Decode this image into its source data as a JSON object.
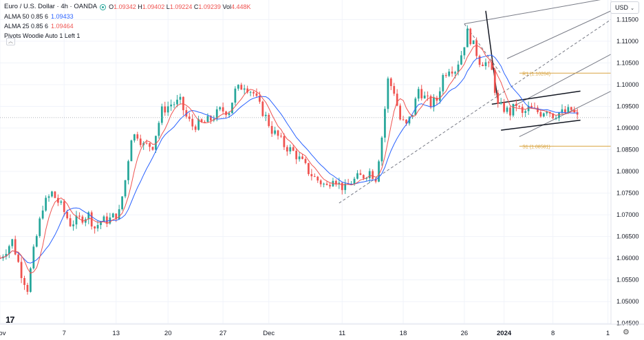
{
  "legend": {
    "symbol": "Euro / U.S. Dollar · 4h · OANDA",
    "ohlc": {
      "o_label": "O",
      "o": "1.09342",
      "h_label": "H",
      "h": "1.09402",
      "l_label": "L",
      "l": "1.09224",
      "c_label": "C",
      "c": "1.09239",
      "vol_label": "Vol",
      "vol": "4.448K"
    },
    "alma50": {
      "label": "ALMA 50 0.85 6",
      "value": "1.09433"
    },
    "alma25": {
      "label": "ALMA 25 0.85 6",
      "value": "1.09464"
    },
    "pivots": "Pivots Woodie Auto 1 Left 1",
    "collapse_icon": "chevron-up-icon"
  },
  "currency_button": "USD",
  "chart_data": {
    "type": "candlestick",
    "symbol": "EUR/USD",
    "timeframe": "4h",
    "ylim": [
      1.0448,
      1.1195
    ],
    "y_ticks": [
      "1.11500",
      "1.11000",
      "1.10500",
      "1.10000",
      "1.09500",
      "1.09000",
      "1.08500",
      "1.08000",
      "1.07500",
      "1.07000",
      "1.06500",
      "1.06000",
      "1.05500",
      "1.05000",
      "1.04500"
    ],
    "x_ticks": [
      {
        "label": "Nov",
        "pos": 0
      },
      {
        "label": "7",
        "pos": 10.5
      },
      {
        "label": "13",
        "pos": 19.0
      },
      {
        "label": "20",
        "pos": 27.5
      },
      {
        "label": "27",
        "pos": 36.5
      },
      {
        "label": "Dec",
        "pos": 44.0
      },
      {
        "label": "11",
        "pos": 56.0
      },
      {
        "label": "18",
        "pos": 66.0
      },
      {
        "label": "26",
        "pos": 76.0
      },
      {
        "label": "2024",
        "pos": 82.5
      },
      {
        "label": "8",
        "pos": 90.5
      },
      {
        "label": "1",
        "pos": 99.5
      }
    ],
    "close_path": [
      [
        0,
        1.06
      ],
      [
        2,
        1.064
      ],
      [
        3.5,
        1.0565
      ],
      [
        4.5,
        1.053
      ],
      [
        5.5,
        1.0615
      ],
      [
        7,
        1.072
      ],
      [
        8.5,
        1.075
      ],
      [
        10,
        1.072
      ],
      [
        11.5,
        1.068
      ],
      [
        13,
        1.069
      ],
      [
        14.5,
        1.07
      ],
      [
        15.5,
        1.067
      ],
      [
        16.5,
        1.0685
      ],
      [
        18,
        1.069
      ],
      [
        19.5,
        1.0705
      ],
      [
        20.5,
        1.078
      ],
      [
        21.5,
        1.088
      ],
      [
        22.5,
        1.0885
      ],
      [
        23.5,
        1.086
      ],
      [
        25,
        1.086
      ],
      [
        26.5,
        1.094
      ],
      [
        28,
        1.0955
      ],
      [
        29.5,
        1.096
      ],
      [
        30.5,
        1.0925
      ],
      [
        31.5,
        1.0905
      ],
      [
        33,
        1.091
      ],
      [
        34.5,
        1.092
      ],
      [
        36,
        1.094
      ],
      [
        37.5,
        1.094
      ],
      [
        38.5,
        1.0985
      ],
      [
        40,
        1.1
      ],
      [
        41.5,
        1.098
      ],
      [
        42.5,
        1.095
      ],
      [
        43.5,
        1.0925
      ],
      [
        44.5,
        1.0895
      ],
      [
        45.5,
        1.088
      ],
      [
        46.5,
        1.086
      ],
      [
        48,
        1.0845
      ],
      [
        49.5,
        1.082
      ],
      [
        50.5,
        1.08
      ],
      [
        51.5,
        1.0785
      ],
      [
        52.5,
        1.0775
      ],
      [
        53.5,
        1.0765
      ],
      [
        54.5,
        1.079
      ],
      [
        55.5,
        1.077
      ],
      [
        56.5,
        1.076
      ],
      [
        57.5,
        1.0775
      ],
      [
        58.5,
        1.0785
      ],
      [
        59.5,
        1.079
      ],
      [
        60.5,
        1.08
      ],
      [
        61.5,
        1.0785
      ],
      [
        62.5,
        1.088
      ],
      [
        63.5,
        1.101
      ],
      [
        64.5,
        1.0985
      ],
      [
        65.5,
        1.092
      ],
      [
        66.5,
        1.0905
      ],
      [
        67.5,
        1.0935
      ],
      [
        68.5,
        1.099
      ],
      [
        69.5,
        1.097
      ],
      [
        70.5,
        1.0955
      ],
      [
        71.5,
        1.0965
      ],
      [
        72.5,
        1.102
      ],
      [
        73.5,
        1.104
      ],
      [
        74.5,
        1.1035
      ],
      [
        75.5,
        1.107
      ],
      [
        76.5,
        1.112
      ],
      [
        77.5,
        1.109
      ],
      [
        78.5,
        1.1055
      ],
      [
        79.5,
        1.105
      ],
      [
        80.5,
        1.103
      ],
      [
        81.5,
        1.095
      ],
      [
        82.5,
        1.0945
      ],
      [
        83.5,
        1.0935
      ],
      [
        84.5,
        1.0955
      ],
      [
        85.5,
        1.093
      ],
      [
        86.5,
        1.0945
      ],
      [
        87.5,
        1.094
      ],
      [
        88.5,
        1.0935
      ],
      [
        89.5,
        1.0945
      ],
      [
        90.5,
        1.093
      ],
      [
        91.5,
        1.0935
      ],
      [
        92.5,
        1.0935
      ],
      [
        93.5,
        1.0942
      ],
      [
        94.5,
        1.0924
      ]
    ],
    "fib_levels": [
      {
        "label": "R1 (1.10264)",
        "value": 1.10264
      },
      {
        "label": "S1 (1.08581)",
        "value": 1.08581
      }
    ],
    "current_price": 1.0924,
    "colors": {
      "up": "#26a69a",
      "down": "#ef5350",
      "alma50": "#2962ff",
      "alma25": "#ef5350",
      "fib": "#d9a441",
      "channel": "#787b86",
      "trend": "#131722",
      "grid": "#f0f3fa"
    }
  }
}
